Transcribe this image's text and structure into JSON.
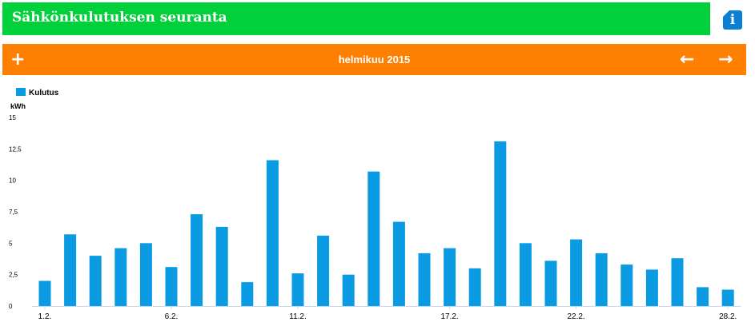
{
  "header": {
    "title": "Sähkönkulutuksen seuranta",
    "info_icon": "i"
  },
  "nav": {
    "add_label": "+",
    "month": "helmikuu 2015",
    "prev_label": "←",
    "next_label": "→"
  },
  "colors": {
    "header_bg": "#00d03a",
    "nav_bg": "#ff8000",
    "bar": "#0b9be3",
    "info": "#0a7fd4"
  },
  "chart_data": {
    "type": "bar",
    "legend": "Kulutus",
    "ylabel": "kWh",
    "ylim": [
      0,
      15
    ],
    "yticks": [
      0,
      2.5,
      5,
      7.5,
      10,
      12.5,
      15
    ],
    "ytick_labels": [
      "0",
      "2,5",
      "5",
      "7,5",
      "10",
      "12,5",
      "15"
    ],
    "categories": [
      "1.2.",
      "2.2.",
      "3.2.",
      "4.2.",
      "5.2.",
      "6.2.",
      "7.2.",
      "8.2.",
      "9.2.",
      "10.2.",
      "11.2.",
      "12.2.",
      "13.2.",
      "14.2.",
      "15.2.",
      "16.2.",
      "17.2.",
      "18.2.",
      "19.2.",
      "20.2.",
      "21.2.",
      "22.2.",
      "23.2.",
      "24.2.",
      "25.2.",
      "26.2.",
      "27.2.",
      "28.2."
    ],
    "shown_xticks": [
      "1.2.",
      "6.2.",
      "11.2.",
      "17.2.",
      "22.2.",
      "28.2."
    ],
    "series": [
      {
        "name": "Kulutus",
        "values": [
          2.0,
          5.7,
          4.0,
          4.6,
          5.0,
          3.1,
          7.3,
          6.3,
          1.9,
          11.6,
          2.6,
          5.6,
          2.5,
          10.7,
          6.7,
          4.2,
          4.6,
          3.0,
          13.1,
          5.0,
          3.6,
          5.3,
          4.2,
          3.3,
          2.9,
          3.8,
          1.5,
          1.3
        ]
      }
    ]
  }
}
